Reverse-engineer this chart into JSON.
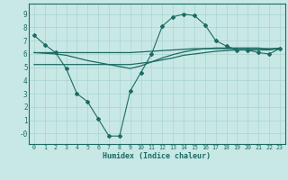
{
  "xlabel": "Humidex (Indice chaleur)",
  "xlim": [
    -0.5,
    23.5
  ],
  "ylim": [
    -0.8,
    9.8
  ],
  "xticks": [
    0,
    1,
    2,
    3,
    4,
    5,
    6,
    7,
    8,
    9,
    10,
    11,
    12,
    13,
    14,
    15,
    16,
    17,
    18,
    19,
    20,
    21,
    22,
    23
  ],
  "yticks": [
    0,
    1,
    2,
    3,
    4,
    5,
    6,
    7,
    8,
    9
  ],
  "ytick_labels": [
    "-0",
    "1",
    "2",
    "3",
    "4",
    "5",
    "6",
    "7",
    "8",
    "9"
  ],
  "bg_color": "#c8e8e5",
  "line_color": "#1c6b63",
  "grid_color": "#aad4cf",
  "curve1_x": [
    0,
    1,
    2,
    3,
    4,
    5,
    6,
    7,
    8,
    9,
    10,
    11,
    12,
    13,
    14,
    15,
    16,
    17,
    18,
    19,
    20,
    21,
    22,
    23
  ],
  "curve1_y": [
    7.4,
    6.7,
    6.1,
    4.9,
    3.0,
    2.4,
    1.1,
    -0.2,
    -0.2,
    3.2,
    4.6,
    6.0,
    8.1,
    8.8,
    9.0,
    8.9,
    8.2,
    7.0,
    6.6,
    6.3,
    6.3,
    6.1,
    6.0,
    6.4
  ],
  "curve2_x": [
    0,
    1,
    2,
    3,
    4,
    5,
    6,
    7,
    8,
    9,
    10,
    11,
    12,
    13,
    14,
    15,
    16,
    17,
    18,
    19,
    20,
    21,
    22,
    23
  ],
  "curve2_y": [
    6.1,
    6.1,
    6.1,
    6.1,
    6.1,
    6.1,
    6.1,
    6.1,
    6.1,
    6.1,
    6.15,
    6.2,
    6.25,
    6.3,
    6.35,
    6.4,
    6.4,
    6.4,
    6.4,
    6.4,
    6.4,
    6.4,
    6.4,
    6.4
  ],
  "curve3_x": [
    0,
    1,
    2,
    3,
    4,
    5,
    6,
    7,
    8,
    9,
    10,
    11,
    12,
    13,
    14,
    15,
    16,
    17,
    18,
    19,
    20,
    21,
    22,
    23
  ],
  "curve3_y": [
    5.2,
    5.2,
    5.2,
    5.2,
    5.2,
    5.2,
    5.2,
    5.2,
    5.2,
    5.2,
    5.3,
    5.4,
    5.55,
    5.7,
    5.9,
    6.0,
    6.1,
    6.2,
    6.25,
    6.3,
    6.3,
    6.3,
    6.3,
    6.4
  ],
  "curve4_x": [
    0,
    1,
    2,
    3,
    4,
    5,
    6,
    7,
    8,
    9,
    10,
    11,
    12,
    13,
    14,
    15,
    16,
    17,
    18,
    19,
    20,
    21,
    22,
    23
  ],
  "curve4_y": [
    6.1,
    6.05,
    6.0,
    5.9,
    5.7,
    5.5,
    5.35,
    5.2,
    5.05,
    4.9,
    5.1,
    5.4,
    5.7,
    5.95,
    6.15,
    6.3,
    6.4,
    6.45,
    6.45,
    6.45,
    6.45,
    6.45,
    6.35,
    6.45
  ]
}
